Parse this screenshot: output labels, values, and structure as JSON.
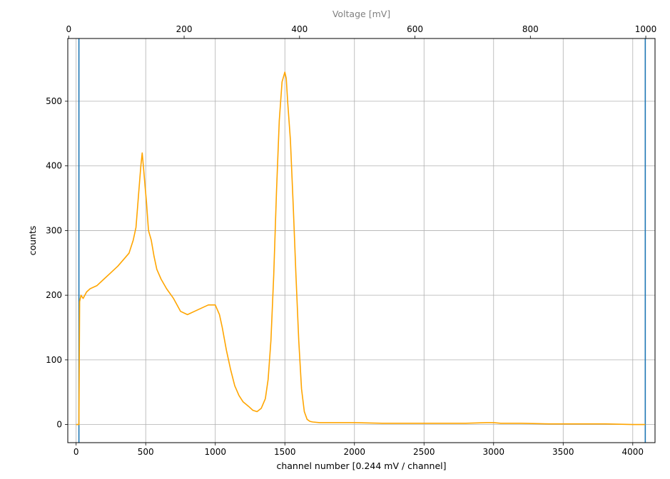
{
  "chart_data": {
    "type": "line",
    "title": "",
    "xlabel": "channel number [0.244 mV / channel]",
    "ylabel": "counts",
    "top_xlabel": "Voltage [mV]",
    "xlim": [
      -60,
      4160
    ],
    "ylim": [
      -28,
      597
    ],
    "xticks": [
      0,
      500,
      1000,
      1500,
      2000,
      2500,
      3000,
      3500,
      4000
    ],
    "yticks": [
      0,
      100,
      200,
      300,
      400,
      500
    ],
    "top_xlim": [
      -1.6,
      1016
    ],
    "top_xticks": [
      0,
      200,
      400,
      600,
      800,
      1000
    ],
    "grid": true,
    "vlines": [
      {
        "x": 20,
        "color": "#1f77b4"
      },
      {
        "x": 4090,
        "color": "#1f77b4"
      }
    ],
    "series": [
      {
        "color": "#ffa500",
        "x": [
          0,
          10,
          20,
          25,
          35,
          50,
          75,
          100,
          150,
          200,
          250,
          300,
          340,
          380,
          410,
          430,
          450,
          465,
          475,
          485,
          495,
          505,
          520,
          540,
          560,
          580,
          610,
          650,
          700,
          750,
          800,
          850,
          900,
          950,
          1000,
          1030,
          1050,
          1080,
          1110,
          1140,
          1170,
          1200,
          1240,
          1270,
          1300,
          1330,
          1360,
          1380,
          1400,
          1420,
          1440,
          1460,
          1480,
          1500,
          1510,
          1520,
          1540,
          1560,
          1580,
          1600,
          1620,
          1640,
          1660,
          1680,
          1700,
          1750,
          1800,
          1900,
          2000,
          2200,
          2400,
          2600,
          2800,
          2950,
          3000,
          3050,
          3200,
          3400,
          3600,
          3800,
          4000,
          4090
        ],
        "y": [
          0,
          0,
          0,
          190,
          200,
          195,
          205,
          210,
          215,
          225,
          235,
          245,
          255,
          265,
          285,
          305,
          360,
          400,
          420,
          395,
          370,
          345,
          300,
          285,
          260,
          240,
          225,
          210,
          195,
          175,
          170,
          175,
          180,
          185,
          185,
          170,
          150,
          115,
          85,
          60,
          45,
          35,
          28,
          22,
          20,
          25,
          40,
          70,
          130,
          230,
          360,
          470,
          530,
          545,
          535,
          500,
          440,
          340,
          230,
          130,
          55,
          20,
          8,
          5,
          4,
          3,
          3,
          3,
          3,
          2,
          2,
          2,
          2,
          3,
          3,
          2,
          2,
          1,
          1,
          1,
          0,
          0
        ]
      }
    ]
  }
}
